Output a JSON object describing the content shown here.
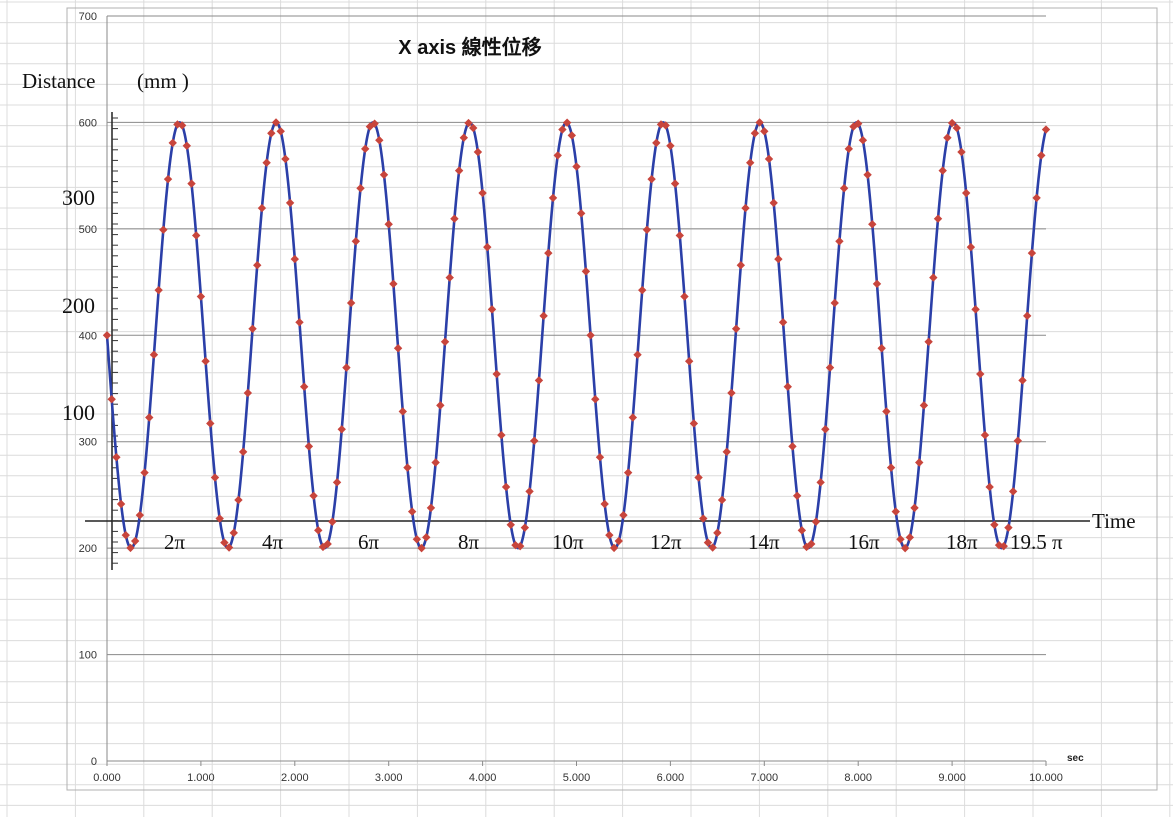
{
  "chart_data": {
    "type": "line",
    "title": "X axis 線性位移",
    "xlabel_unit": "sec",
    "x_ticks": [
      "0.000",
      "1.000",
      "2.000",
      "3.000",
      "4.000",
      "5.000",
      "6.000",
      "7.000",
      "8.000",
      "9.000",
      "10.000"
    ],
    "xlim": [
      0,
      10
    ],
    "y_ticks": [
      "0",
      "100",
      "200",
      "300",
      "400",
      "500",
      "600",
      "700"
    ],
    "ylim": [
      0,
      700
    ],
    "overlay": {
      "ylabel": "Distance",
      "ylabel_unit": "(mm )",
      "y_ticks": [
        "100",
        "200",
        "300"
      ],
      "xlabel": "Time",
      "pi_ticks": [
        "2π",
        "4π",
        "6π",
        "8π",
        "10π",
        "12π",
        "14π",
        "16π",
        "18π",
        "19.5 π"
      ]
    },
    "series": [
      {
        "color": "#2b3fa8",
        "line": "solid",
        "marker": "none",
        "amplitude": 200,
        "center": 400,
        "period": 1.03,
        "phase_shift": 0.0,
        "x_start": 0,
        "x_end": 10,
        "start_value": 400,
        "minimum": 200,
        "maximum": 600
      },
      {
        "color": "#c8453c",
        "line": "thin-orange",
        "marker": "diamond",
        "sample_step": 0.05,
        "x_start": 0,
        "x_end": 10,
        "start_value": 390,
        "minimum": 200,
        "maximum": 600
      }
    ]
  }
}
